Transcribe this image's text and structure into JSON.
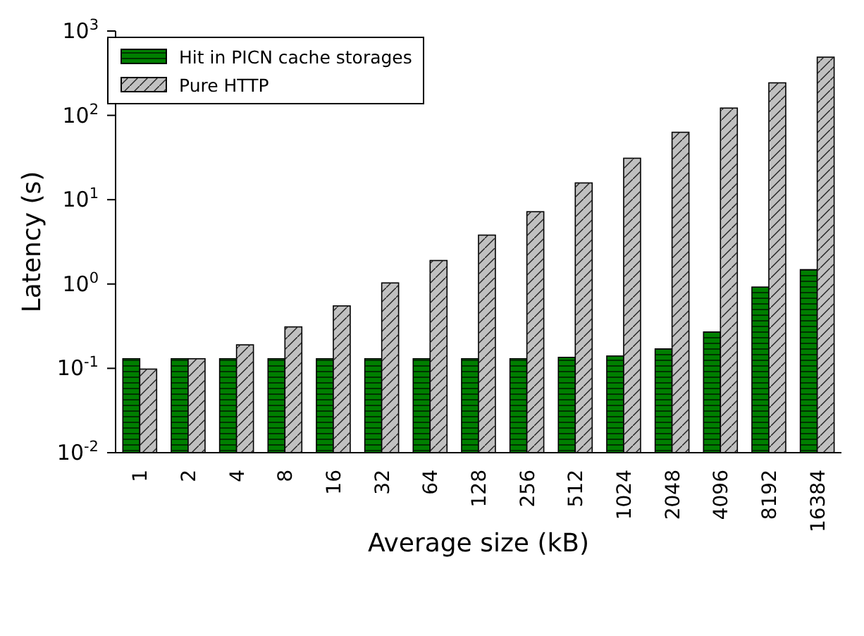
{
  "chart_data": {
    "type": "bar",
    "xlabel": "Average size (kB)",
    "ylabel": "Latency (s)",
    "categories": [
      "1",
      "2",
      "4",
      "8",
      "16",
      "32",
      "64",
      "128",
      "256",
      "512",
      "1024",
      "2048",
      "4096",
      "8192",
      "16384"
    ],
    "series": [
      {
        "name": "Hit in PICN cache storages",
        "color": "#007f00",
        "values": [
          0.13,
          0.13,
          0.13,
          0.13,
          0.13,
          0.13,
          0.13,
          0.13,
          0.13,
          0.135,
          0.14,
          0.17,
          0.27,
          0.92,
          1.48
        ]
      },
      {
        "name": "Pure HTTP",
        "color": "#c0c0c0",
        "values": [
          0.098,
          0.13,
          0.19,
          0.31,
          0.55,
          1.03,
          1.9,
          3.8,
          7.2,
          15.8,
          31,
          63,
          122,
          243,
          490
        ]
      }
    ],
    "log": "y",
    "ylim": [
      0.01,
      1000
    ],
    "yticks": [
      {
        "value": 0.01,
        "label": "10$^{-2}$"
      },
      {
        "value": 0.1,
        "label": "10$^{-1}$"
      },
      {
        "value": 1,
        "label": "10$^{0}$"
      },
      {
        "value": 10,
        "label": "10$^{1}$"
      },
      {
        "value": 100,
        "label": "10$^{2}$"
      },
      {
        "value": 1000,
        "label": "10$^{3}$"
      }
    ],
    "grid": false,
    "legend": "top left"
  }
}
